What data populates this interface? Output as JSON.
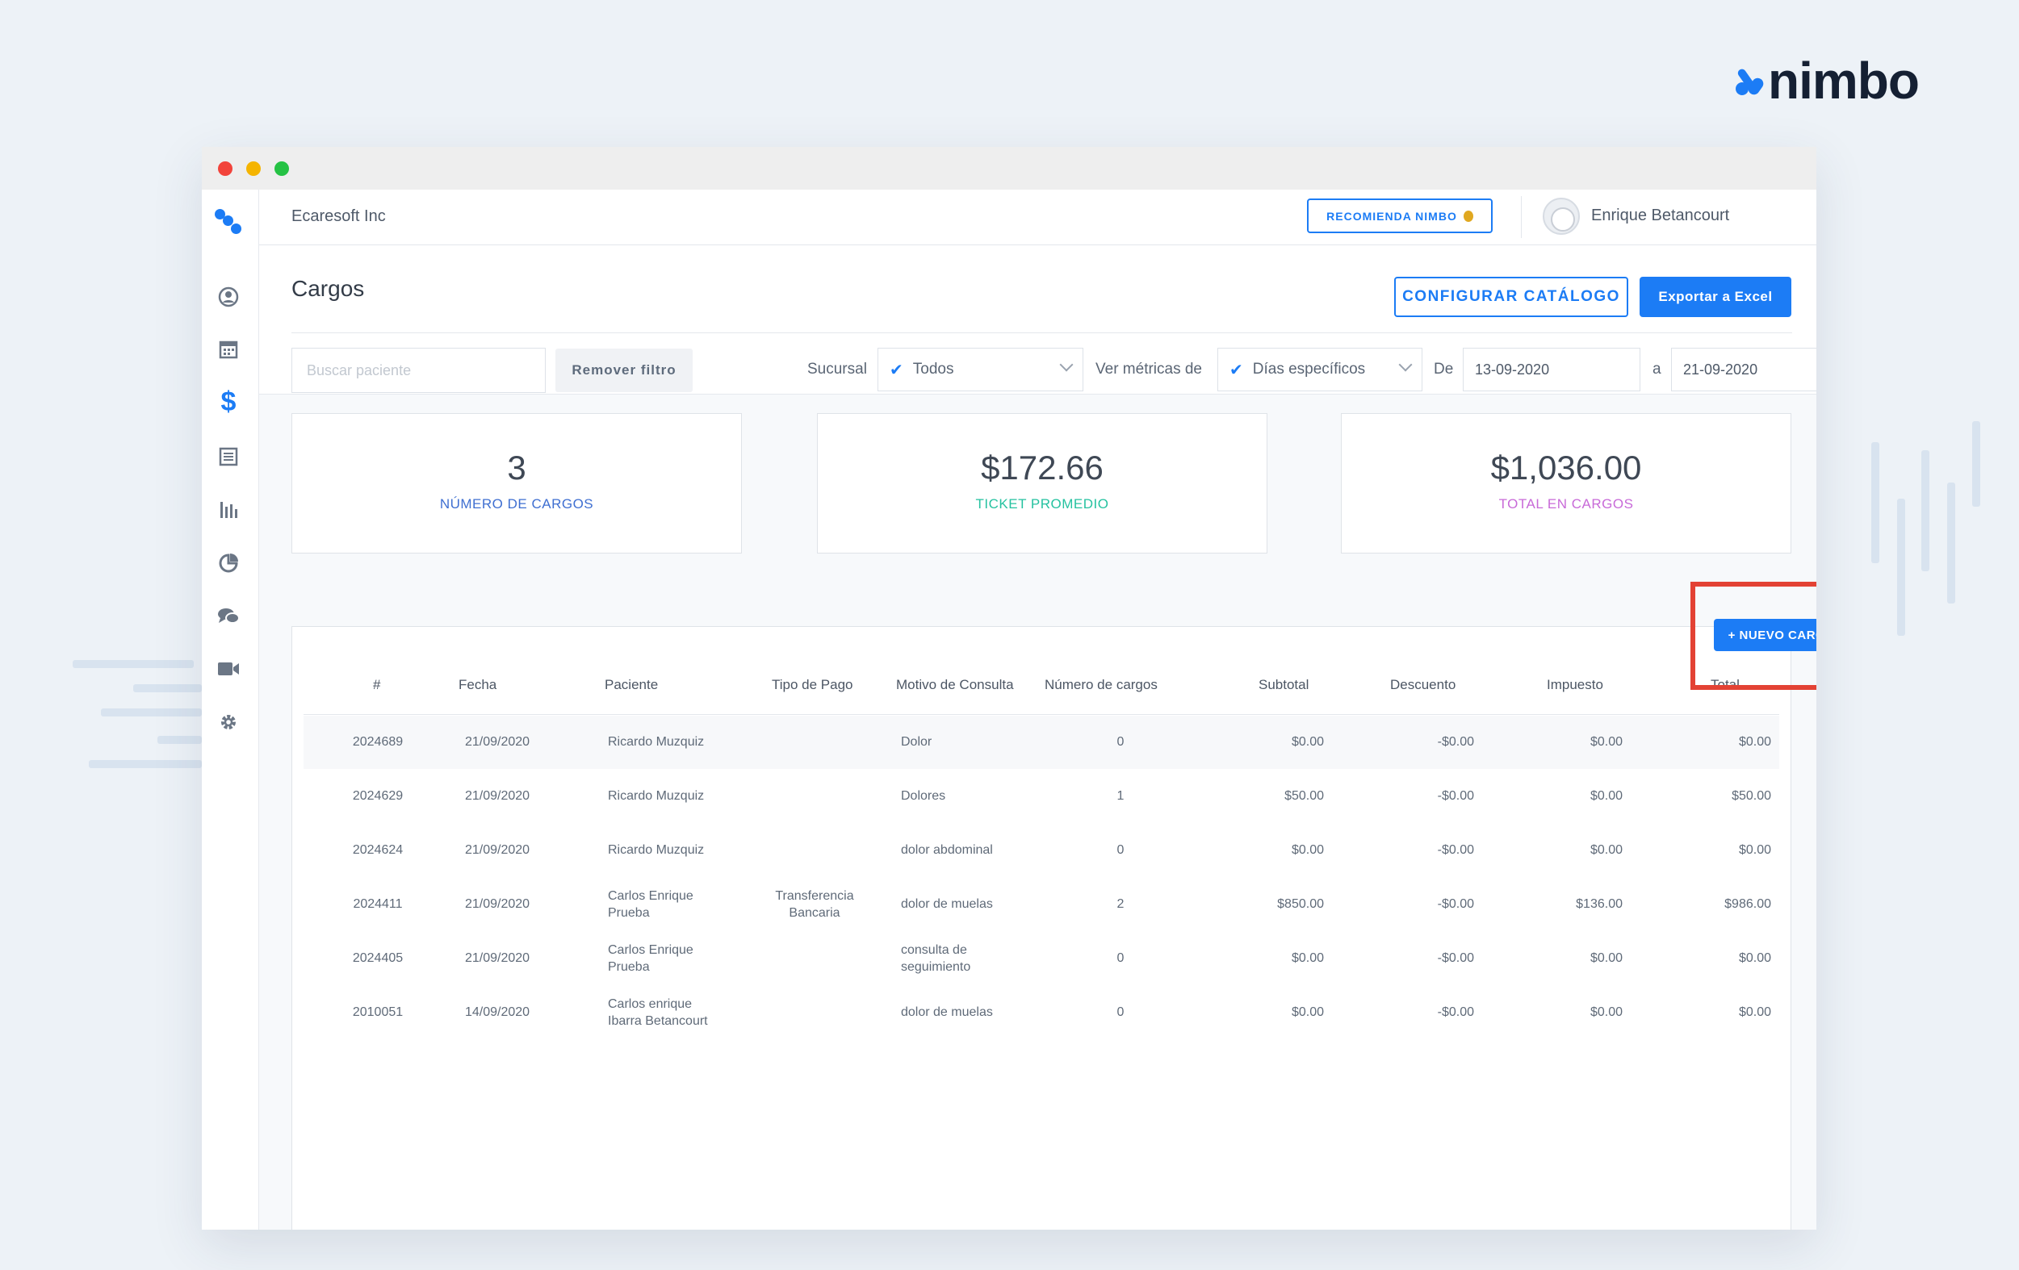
{
  "brand": {
    "name": "nimbo",
    "color": "#1c7cf5"
  },
  "window": {
    "traffic_lights": [
      "#f2433b",
      "#f5b400",
      "#25c244"
    ]
  },
  "sidebar": {
    "icons": [
      "user-circle-icon",
      "calendar-icon",
      "dollar-icon",
      "list-icon",
      "bar-chart-icon",
      "pie-chart-icon",
      "chat-icon",
      "video-icon",
      "gear-icon"
    ],
    "active": "dollar-icon"
  },
  "topbar": {
    "company": "Ecaresoft Inc",
    "recommend_label": "RECOMIENDA NIMBO",
    "user_name": "Enrique Betancourt"
  },
  "page": {
    "title": "Cargos",
    "configure_label": "CONFIGURAR CATÁLOGO",
    "export_label": "Exportar a Excel"
  },
  "filters": {
    "search_placeholder": "Buscar paciente",
    "remove_filter_label": "Remover filtro",
    "branch_label": "Sucursal",
    "branch_value": "Todos",
    "metrics_label": "Ver métricas de",
    "metrics_value": "Días específicos",
    "from_label": "De",
    "from_value": "13-09-2020",
    "to_label": "a",
    "to_value": "21-09-2020"
  },
  "stats": [
    {
      "value": "3",
      "label": "NÚMERO DE CARGOS",
      "color": "#3f6fd1"
    },
    {
      "value": "$172.66",
      "label": "TICKET PROMEDIO",
      "color": "#25c2a0"
    },
    {
      "value": "$1,036.00",
      "label": "TOTAL EN CARGOS",
      "color": "#c86ad8"
    }
  ],
  "new_charge_label": "+ NUEVO CARGO",
  "table": {
    "headers": [
      "#",
      "Fecha",
      "Paciente",
      "Tipo de Pago",
      "Motivo de Consulta",
      "Número de cargos",
      "Subtotal",
      "Descuento",
      "Impuesto",
      "Total"
    ],
    "rows": [
      {
        "id": "2024689",
        "fecha": "21/09/2020",
        "paciente": "Ricardo Muzquiz",
        "tipo": "",
        "motivo": "Dolor",
        "numero": "0",
        "subtotal": "$0.00",
        "descuento": "-$0.00",
        "impuesto": "$0.00",
        "total": "$0.00"
      },
      {
        "id": "2024629",
        "fecha": "21/09/2020",
        "paciente": "Ricardo Muzquiz",
        "tipo": "",
        "motivo": "Dolores",
        "numero": "1",
        "subtotal": "$50.00",
        "descuento": "-$0.00",
        "impuesto": "$0.00",
        "total": "$50.00"
      },
      {
        "id": "2024624",
        "fecha": "21/09/2020",
        "paciente": "Ricardo Muzquiz",
        "tipo": "",
        "motivo": "dolor abdominal",
        "numero": "0",
        "subtotal": "$0.00",
        "descuento": "-$0.00",
        "impuesto": "$0.00",
        "total": "$0.00"
      },
      {
        "id": "2024411",
        "fecha": "21/09/2020",
        "paciente": "Carlos Enrique\nPrueba",
        "tipo": "Transferencia\nBancaria",
        "motivo": "dolor de muelas",
        "numero": "2",
        "subtotal": "$850.00",
        "descuento": "-$0.00",
        "impuesto": "$136.00",
        "total": "$986.00"
      },
      {
        "id": "2024405",
        "fecha": "21/09/2020",
        "paciente": "Carlos Enrique\nPrueba",
        "tipo": "",
        "motivo": "consulta de\nseguimiento",
        "numero": "0",
        "subtotal": "$0.00",
        "descuento": "-$0.00",
        "impuesto": "$0.00",
        "total": "$0.00"
      },
      {
        "id": "2010051",
        "fecha": "14/09/2020",
        "paciente": "Carlos enrique\nIbarra Betancourt",
        "tipo": "",
        "motivo": "dolor de muelas",
        "numero": "0",
        "subtotal": "$0.00",
        "descuento": "-$0.00",
        "impuesto": "$0.00",
        "total": "$0.00"
      }
    ]
  }
}
